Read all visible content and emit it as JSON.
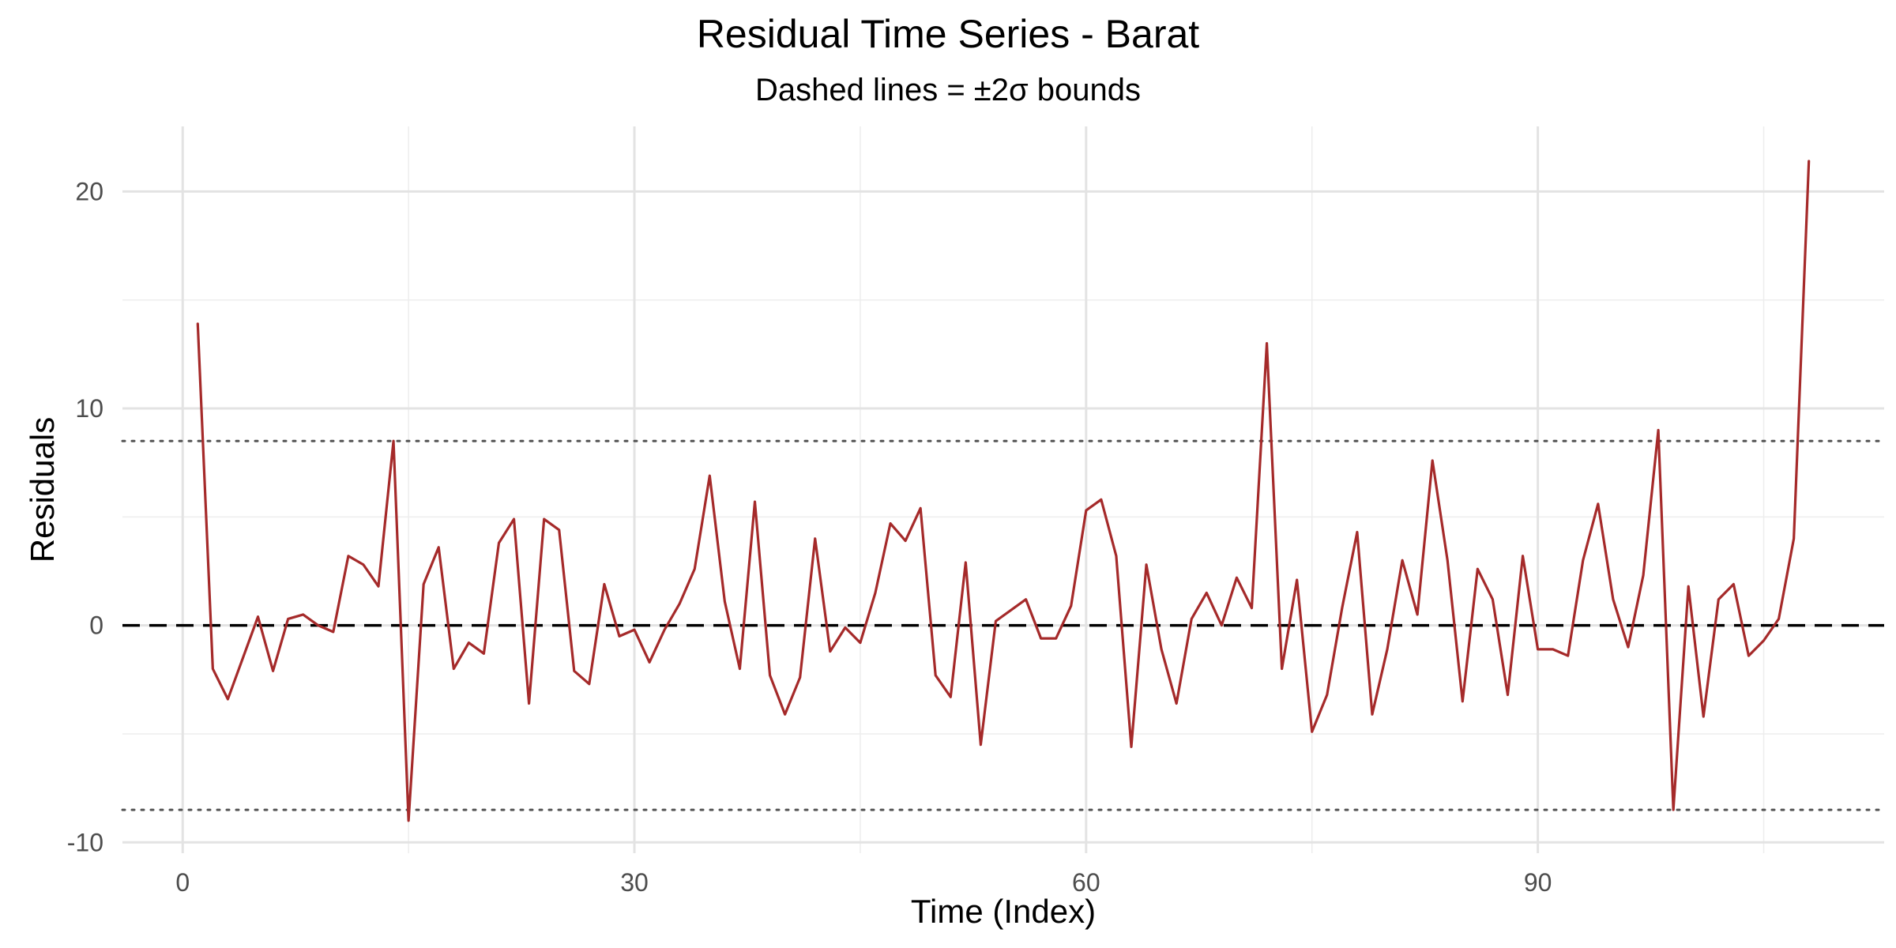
{
  "chart_data": {
    "type": "line",
    "title": "Residual Time Series - Barat",
    "subtitle": "Dashed lines = ±2σ bounds",
    "xlabel": "Time (Index)",
    "ylabel": "Residuals",
    "xlim": [
      -4,
      113
    ],
    "ylim": [
      -10.5,
      23
    ],
    "x_ticks": [
      0,
      30,
      60,
      90
    ],
    "y_ticks": [
      -10,
      0,
      10,
      20
    ],
    "grid": true,
    "reference_lines": [
      {
        "kind": "zero",
        "y": 0,
        "style": "dashed",
        "color": "#000000"
      },
      {
        "kind": "upper_2sigma",
        "y": 8.5,
        "style": "dotted",
        "color": "#555555"
      },
      {
        "kind": "lower_2sigma",
        "y": -8.5,
        "style": "dotted",
        "color": "#555555"
      }
    ],
    "series": [
      {
        "color": "#a52a2a",
        "x": [
          1,
          2,
          3,
          4,
          5,
          6,
          7,
          8,
          9,
          10,
          11,
          12,
          13,
          14,
          15,
          16,
          17,
          18,
          19,
          20,
          21,
          22,
          23,
          24,
          25,
          26,
          27,
          28,
          29,
          30,
          31,
          32,
          33,
          34,
          35,
          36,
          37,
          38,
          39,
          40,
          41,
          42,
          43,
          44,
          45,
          46,
          47,
          48,
          49,
          50,
          51,
          52,
          53,
          54,
          55,
          56,
          57,
          58,
          59,
          60,
          61,
          62,
          63,
          64,
          65,
          66,
          67,
          68,
          69,
          70,
          71,
          72,
          73,
          74,
          75,
          76,
          77,
          78,
          79,
          80,
          81,
          82,
          83,
          84,
          85,
          86,
          87,
          88,
          89,
          90,
          91,
          92,
          93,
          94,
          95,
          96,
          97,
          98,
          99,
          100,
          101,
          102,
          103,
          104,
          105,
          106,
          107,
          108
        ],
        "values": [
          13.9,
          -2.0,
          -3.4,
          -1.5,
          0.4,
          -2.1,
          0.3,
          0.5,
          0.0,
          -0.3,
          3.2,
          2.8,
          1.8,
          8.5,
          -9.0,
          1.9,
          3.6,
          -2.0,
          -0.8,
          -1.3,
          3.8,
          4.9,
          -3.6,
          4.9,
          4.4,
          -2.1,
          -2.7,
          1.9,
          -0.5,
          -0.2,
          -1.7,
          -0.2,
          1.0,
          2.6,
          6.9,
          1.1,
          -2.0,
          5.7,
          -2.3,
          -4.1,
          -2.4,
          4.0,
          -1.2,
          -0.1,
          -0.8,
          1.5,
          4.7,
          3.9,
          5.4,
          -2.3,
          -3.3,
          2.9,
          -5.5,
          0.2,
          0.7,
          1.2,
          -0.6,
          -0.6,
          0.9,
          5.3,
          5.8,
          3.2,
          -5.6,
          2.8,
          -1.1,
          -3.6,
          0.3,
          1.5,
          0.0,
          2.2,
          0.8,
          13.0,
          -2.0,
          2.1,
          -4.9,
          -3.2,
          0.8,
          4.3,
          -4.1,
          -1.1,
          3.0,
          0.5,
          7.6,
          3.0,
          -3.5,
          2.6,
          1.2,
          -3.2,
          3.2,
          -1.1,
          -1.1,
          -1.4,
          3.0,
          5.6,
          1.2,
          -1.0,
          2.3,
          9.0,
          -8.5,
          1.8,
          -4.2,
          1.2,
          1.9,
          -1.4,
          -0.7,
          0.3,
          4.0,
          21.4
        ]
      }
    ]
  }
}
